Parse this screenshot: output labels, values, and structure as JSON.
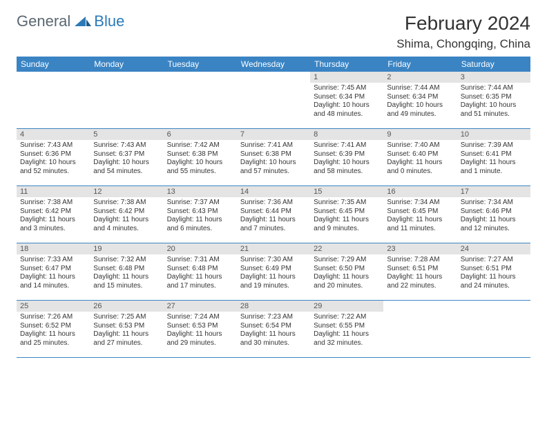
{
  "logo": {
    "general": "General",
    "blue": "Blue"
  },
  "title": "February 2024",
  "location": "Shima, Chongqing, China",
  "colors": {
    "header_bg": "#3a84c4",
    "daynum_bg": "#e4e4e4",
    "week_border": "#3a84c4",
    "logo_general": "#5a6770",
    "logo_blue": "#2a7ab8",
    "text": "#333333",
    "background": "#ffffff"
  },
  "weekdays": [
    "Sunday",
    "Monday",
    "Tuesday",
    "Wednesday",
    "Thursday",
    "Friday",
    "Saturday"
  ],
  "leading_blanks": 4,
  "days": [
    {
      "n": "1",
      "sunrise": "Sunrise: 7:45 AM",
      "sunset": "Sunset: 6:34 PM",
      "d1": "Daylight: 10 hours",
      "d2": "and 48 minutes."
    },
    {
      "n": "2",
      "sunrise": "Sunrise: 7:44 AM",
      "sunset": "Sunset: 6:34 PM",
      "d1": "Daylight: 10 hours",
      "d2": "and 49 minutes."
    },
    {
      "n": "3",
      "sunrise": "Sunrise: 7:44 AM",
      "sunset": "Sunset: 6:35 PM",
      "d1": "Daylight: 10 hours",
      "d2": "and 51 minutes."
    },
    {
      "n": "4",
      "sunrise": "Sunrise: 7:43 AM",
      "sunset": "Sunset: 6:36 PM",
      "d1": "Daylight: 10 hours",
      "d2": "and 52 minutes."
    },
    {
      "n": "5",
      "sunrise": "Sunrise: 7:43 AM",
      "sunset": "Sunset: 6:37 PM",
      "d1": "Daylight: 10 hours",
      "d2": "and 54 minutes."
    },
    {
      "n": "6",
      "sunrise": "Sunrise: 7:42 AM",
      "sunset": "Sunset: 6:38 PM",
      "d1": "Daylight: 10 hours",
      "d2": "and 55 minutes."
    },
    {
      "n": "7",
      "sunrise": "Sunrise: 7:41 AM",
      "sunset": "Sunset: 6:38 PM",
      "d1": "Daylight: 10 hours",
      "d2": "and 57 minutes."
    },
    {
      "n": "8",
      "sunrise": "Sunrise: 7:41 AM",
      "sunset": "Sunset: 6:39 PM",
      "d1": "Daylight: 10 hours",
      "d2": "and 58 minutes."
    },
    {
      "n": "9",
      "sunrise": "Sunrise: 7:40 AM",
      "sunset": "Sunset: 6:40 PM",
      "d1": "Daylight: 11 hours",
      "d2": "and 0 minutes."
    },
    {
      "n": "10",
      "sunrise": "Sunrise: 7:39 AM",
      "sunset": "Sunset: 6:41 PM",
      "d1": "Daylight: 11 hours",
      "d2": "and 1 minute."
    },
    {
      "n": "11",
      "sunrise": "Sunrise: 7:38 AM",
      "sunset": "Sunset: 6:42 PM",
      "d1": "Daylight: 11 hours",
      "d2": "and 3 minutes."
    },
    {
      "n": "12",
      "sunrise": "Sunrise: 7:38 AM",
      "sunset": "Sunset: 6:42 PM",
      "d1": "Daylight: 11 hours",
      "d2": "and 4 minutes."
    },
    {
      "n": "13",
      "sunrise": "Sunrise: 7:37 AM",
      "sunset": "Sunset: 6:43 PM",
      "d1": "Daylight: 11 hours",
      "d2": "and 6 minutes."
    },
    {
      "n": "14",
      "sunrise": "Sunrise: 7:36 AM",
      "sunset": "Sunset: 6:44 PM",
      "d1": "Daylight: 11 hours",
      "d2": "and 7 minutes."
    },
    {
      "n": "15",
      "sunrise": "Sunrise: 7:35 AM",
      "sunset": "Sunset: 6:45 PM",
      "d1": "Daylight: 11 hours",
      "d2": "and 9 minutes."
    },
    {
      "n": "16",
      "sunrise": "Sunrise: 7:34 AM",
      "sunset": "Sunset: 6:45 PM",
      "d1": "Daylight: 11 hours",
      "d2": "and 11 minutes."
    },
    {
      "n": "17",
      "sunrise": "Sunrise: 7:34 AM",
      "sunset": "Sunset: 6:46 PM",
      "d1": "Daylight: 11 hours",
      "d2": "and 12 minutes."
    },
    {
      "n": "18",
      "sunrise": "Sunrise: 7:33 AM",
      "sunset": "Sunset: 6:47 PM",
      "d1": "Daylight: 11 hours",
      "d2": "and 14 minutes."
    },
    {
      "n": "19",
      "sunrise": "Sunrise: 7:32 AM",
      "sunset": "Sunset: 6:48 PM",
      "d1": "Daylight: 11 hours",
      "d2": "and 15 minutes."
    },
    {
      "n": "20",
      "sunrise": "Sunrise: 7:31 AM",
      "sunset": "Sunset: 6:48 PM",
      "d1": "Daylight: 11 hours",
      "d2": "and 17 minutes."
    },
    {
      "n": "21",
      "sunrise": "Sunrise: 7:30 AM",
      "sunset": "Sunset: 6:49 PM",
      "d1": "Daylight: 11 hours",
      "d2": "and 19 minutes."
    },
    {
      "n": "22",
      "sunrise": "Sunrise: 7:29 AM",
      "sunset": "Sunset: 6:50 PM",
      "d1": "Daylight: 11 hours",
      "d2": "and 20 minutes."
    },
    {
      "n": "23",
      "sunrise": "Sunrise: 7:28 AM",
      "sunset": "Sunset: 6:51 PM",
      "d1": "Daylight: 11 hours",
      "d2": "and 22 minutes."
    },
    {
      "n": "24",
      "sunrise": "Sunrise: 7:27 AM",
      "sunset": "Sunset: 6:51 PM",
      "d1": "Daylight: 11 hours",
      "d2": "and 24 minutes."
    },
    {
      "n": "25",
      "sunrise": "Sunrise: 7:26 AM",
      "sunset": "Sunset: 6:52 PM",
      "d1": "Daylight: 11 hours",
      "d2": "and 25 minutes."
    },
    {
      "n": "26",
      "sunrise": "Sunrise: 7:25 AM",
      "sunset": "Sunset: 6:53 PM",
      "d1": "Daylight: 11 hours",
      "d2": "and 27 minutes."
    },
    {
      "n": "27",
      "sunrise": "Sunrise: 7:24 AM",
      "sunset": "Sunset: 6:53 PM",
      "d1": "Daylight: 11 hours",
      "d2": "and 29 minutes."
    },
    {
      "n": "28",
      "sunrise": "Sunrise: 7:23 AM",
      "sunset": "Sunset: 6:54 PM",
      "d1": "Daylight: 11 hours",
      "d2": "and 30 minutes."
    },
    {
      "n": "29",
      "sunrise": "Sunrise: 7:22 AM",
      "sunset": "Sunset: 6:55 PM",
      "d1": "Daylight: 11 hours",
      "d2": "and 32 minutes."
    }
  ]
}
